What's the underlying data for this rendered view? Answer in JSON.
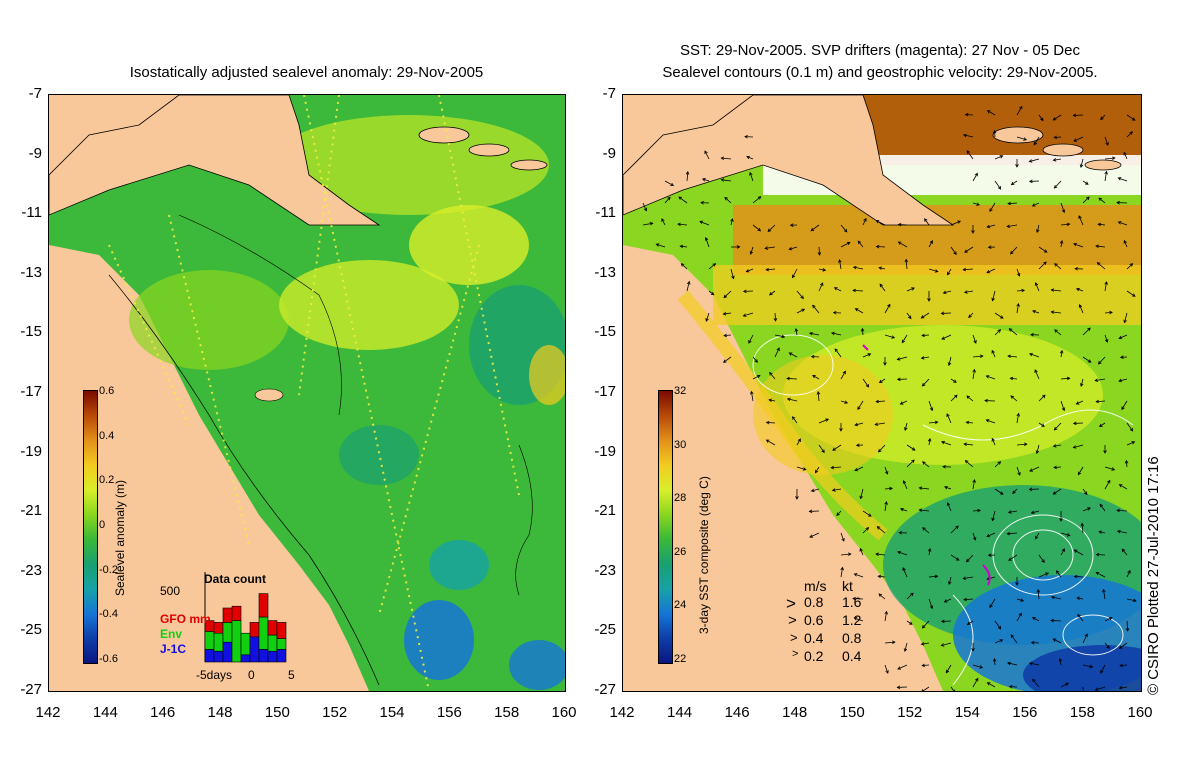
{
  "left": {
    "title": "Isostatically adjusted sealevel anomaly: 29-Nov-2005",
    "colorbar": {
      "title": "Sealevel anomaly (m)",
      "ticks": [
        "0.6",
        "0.4",
        "0.2",
        "0",
        "-0.2",
        "-0.4",
        "-0.6"
      ],
      "colors": [
        "#7a0a00",
        "#b84a08",
        "#e2901a",
        "#f2cc20",
        "#d9ee2a",
        "#8ad620",
        "#3ab838",
        "#1aa070",
        "#17a2a6",
        "#1676d6",
        "#0e3ea8",
        "#0a1680"
      ]
    },
    "data_count": {
      "title": "Data count",
      "max": "500",
      "x_labels": [
        "-5days",
        "0",
        "5"
      ],
      "legend": [
        {
          "name": "GFO mm",
          "color": "#e00000"
        },
        {
          "name": "Env",
          "color": "#10d010"
        },
        {
          "name": "J-1C",
          "color": "#1010e0"
        }
      ],
      "bars": [
        {
          "j1c": 70,
          "env": 100,
          "gfo": 60
        },
        {
          "j1c": 60,
          "env": 100,
          "gfo": 60
        },
        {
          "j1c": 110,
          "env": 110,
          "gfo": 80
        },
        {
          "j1c": 0,
          "env": 230,
          "gfo": 80
        },
        {
          "j1c": 40,
          "env": 120,
          "gfo": 0
        },
        {
          "j1c": 140,
          "env": 0,
          "gfo": 80
        },
        {
          "j1c": 70,
          "env": 180,
          "gfo": 130
        },
        {
          "j1c": 60,
          "env": 90,
          "gfo": 80
        },
        {
          "j1c": 70,
          "env": 60,
          "gfo": 90
        }
      ]
    }
  },
  "right": {
    "title_line1": "SST: 29-Nov-2005. SVP drifters (magenta): 27 Nov - 05 Dec",
    "title_line2": "Sealevel contours (0.1 m) and geostrophic velocity: 29-Nov-2005.",
    "colorbar": {
      "title": "3-day SST composite (deg C)",
      "ticks": [
        "32",
        "30",
        "28",
        "26",
        "24",
        "22"
      ],
      "colors": [
        "#7a0a00",
        "#b84a08",
        "#e2901a",
        "#f2cc20",
        "#d9ee2a",
        "#8ad620",
        "#3ab838",
        "#1aa070",
        "#17a2a6",
        "#1676d6",
        "#0e3ea8",
        "#0a1680"
      ]
    },
    "speed_legend": {
      "header_ms": "m/s",
      "header_kt": "kt",
      "rows": [
        {
          "ms": "0.8",
          "kt": "1.6",
          "len": 0.8
        },
        {
          "ms": "0.6",
          "kt": "1.2",
          "len": 0.6
        },
        {
          "ms": "0.4",
          "kt": "0.8",
          "len": 0.4
        },
        {
          "ms": "0.2",
          "kt": "0.4",
          "len": 0.2
        }
      ]
    },
    "copyright": "© CSIRO Plotted 27-Jul-2010 17:16"
  },
  "axes": {
    "lat_labels": [
      "-7",
      "-9",
      "-11",
      "-13",
      "-15",
      "-17",
      "-19",
      "-21",
      "-23",
      "-25",
      "-27"
    ],
    "lon_labels": [
      "142",
      "144",
      "146",
      "148",
      "150",
      "152",
      "154",
      "156",
      "158",
      "160"
    ]
  },
  "colors": {
    "land": "#f9c89a",
    "ocean_base": "#3cb83a"
  }
}
